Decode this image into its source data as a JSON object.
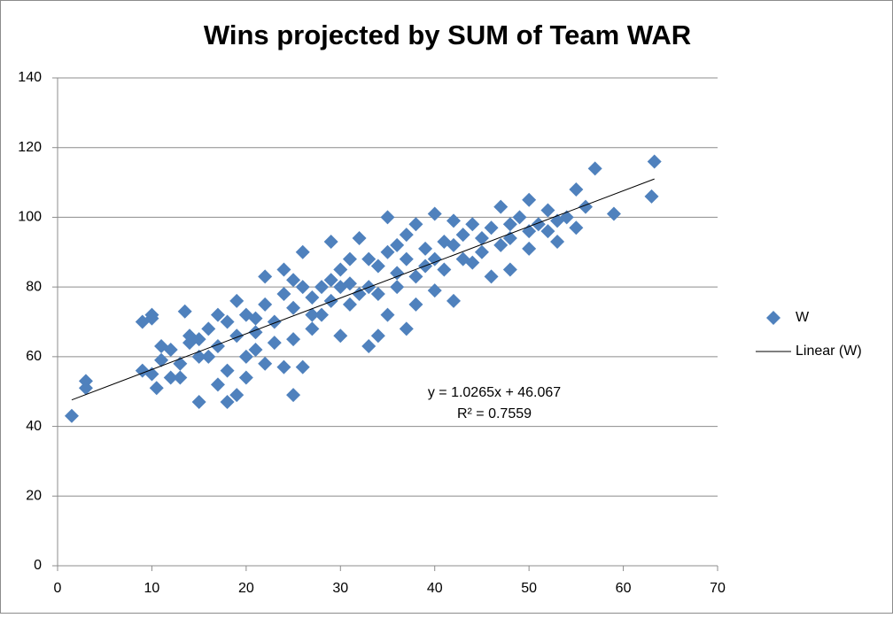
{
  "chart_data": {
    "type": "scatter",
    "title": "Wins projected by SUM of Team WAR",
    "xlim": [
      0,
      70
    ],
    "xticks": [
      0,
      10,
      20,
      30,
      40,
      50,
      60,
      70
    ],
    "ylim": [
      0,
      140
    ],
    "yticks": [
      0,
      20,
      40,
      60,
      80,
      100,
      120,
      140
    ],
    "grid": true,
    "legend": "right",
    "annotations": [
      "y = 1.0265x + 46.067",
      "R² = 0.7559"
    ],
    "series": [
      {
        "name": "W",
        "type": "scatter",
        "color": "#4f81bd",
        "x": [
          1.5,
          3,
          3,
          9,
          9,
          10,
          10,
          10,
          10.5,
          11,
          11,
          12,
          13,
          13.5,
          14,
          15,
          15,
          16,
          17,
          18,
          18,
          19,
          19,
          20,
          21,
          21,
          22,
          24,
          24,
          25,
          25,
          26,
          26,
          27,
          28,
          29,
          30,
          30,
          31,
          32,
          33,
          33,
          34,
          35,
          35,
          36,
          37,
          38,
          38,
          39,
          40,
          40,
          41,
          42,
          42,
          43,
          44,
          45,
          46,
          46,
          47,
          48,
          48,
          49,
          50,
          50,
          51,
          52,
          53,
          54,
          55,
          55,
          56,
          57,
          59,
          63,
          63.3,
          12,
          13,
          14,
          15,
          16,
          17,
          18,
          19,
          20,
          21,
          22,
          23,
          23,
          24,
          25,
          26,
          27,
          27,
          28,
          29,
          29,
          30,
          31,
          32,
          33,
          34,
          34,
          35,
          36,
          36,
          37,
          38,
          39,
          40,
          41,
          42,
          43,
          44,
          45,
          47,
          48,
          50,
          52,
          53,
          20,
          22,
          17,
          25,
          31,
          37
        ],
        "values": [
          43,
          51,
          53,
          56,
          70,
          71,
          72,
          55,
          51,
          59,
          63,
          54,
          54,
          73,
          64,
          47,
          60,
          68,
          52,
          47,
          56,
          49,
          76,
          54,
          62,
          71,
          83,
          57,
          85,
          49,
          65,
          57,
          90,
          72,
          80,
          93,
          66,
          80,
          75,
          94,
          63,
          88,
          66,
          100,
          72,
          84,
          68,
          98,
          75,
          86,
          101,
          79,
          93,
          76,
          99,
          88,
          98,
          90,
          83,
          97,
          103,
          85,
          94,
          100,
          105,
          91,
          98,
          102,
          93,
          100,
          108,
          97,
          103,
          114,
          101,
          106,
          116,
          62,
          58,
          66,
          65,
          60,
          63,
          70,
          66,
          72,
          67,
          75,
          70,
          64,
          78,
          74,
          80,
          68,
          77,
          72,
          82,
          76,
          85,
          81,
          78,
          80,
          86,
          78,
          90,
          80,
          92,
          88,
          83,
          91,
          88,
          85,
          92,
          95,
          87,
          94,
          92,
          98,
          96,
          96,
          99,
          60,
          58,
          72,
          82,
          88,
          95
        ]
      },
      {
        "name": "Linear (W)",
        "type": "line",
        "color": "#000000",
        "x": [
          1.5,
          63.3
        ],
        "values": [
          47.6,
          111.0
        ]
      }
    ]
  }
}
